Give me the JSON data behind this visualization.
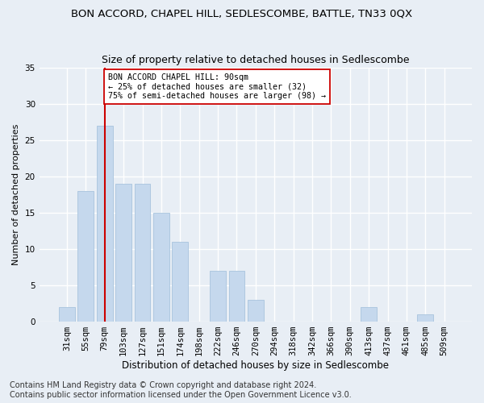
{
  "title": "BON ACCORD, CHAPEL HILL, SEDLESCOMBE, BATTLE, TN33 0QX",
  "subtitle": "Size of property relative to detached houses in Sedlescombe",
  "xlabel": "Distribution of detached houses by size in Sedlescombe",
  "ylabel": "Number of detached properties",
  "categories": [
    "31sqm",
    "55sqm",
    "79sqm",
    "103sqm",
    "127sqm",
    "151sqm",
    "174sqm",
    "198sqm",
    "222sqm",
    "246sqm",
    "270sqm",
    "294sqm",
    "318sqm",
    "342sqm",
    "366sqm",
    "390sqm",
    "413sqm",
    "437sqm",
    "461sqm",
    "485sqm",
    "509sqm"
  ],
  "values": [
    2,
    18,
    27,
    19,
    19,
    15,
    11,
    0,
    7,
    7,
    3,
    0,
    0,
    0,
    0,
    0,
    2,
    0,
    0,
    1,
    0
  ],
  "bar_color": "#c5d8ed",
  "bar_edge_color": "#a8c4de",
  "vline_x": 2,
  "vline_color": "#cc0000",
  "annotation_text": "BON ACCORD CHAPEL HILL: 90sqm\n← 25% of detached houses are smaller (32)\n75% of semi-detached houses are larger (98) →",
  "annotation_box_color": "#ffffff",
  "annotation_box_edge": "#cc0000",
  "ylim": [
    0,
    35
  ],
  "yticks": [
    0,
    5,
    10,
    15,
    20,
    25,
    30,
    35
  ],
  "footnote1": "Contains HM Land Registry data © Crown copyright and database right 2024.",
  "footnote2": "Contains public sector information licensed under the Open Government Licence v3.0.",
  "bg_color": "#e8eef5",
  "plot_bg_color": "#e8eef5",
  "grid_color": "#ffffff",
  "title_fontsize": 9.5,
  "subtitle_fontsize": 9,
  "xlabel_fontsize": 8.5,
  "ylabel_fontsize": 8,
  "tick_fontsize": 7.5,
  "footnote_fontsize": 7
}
